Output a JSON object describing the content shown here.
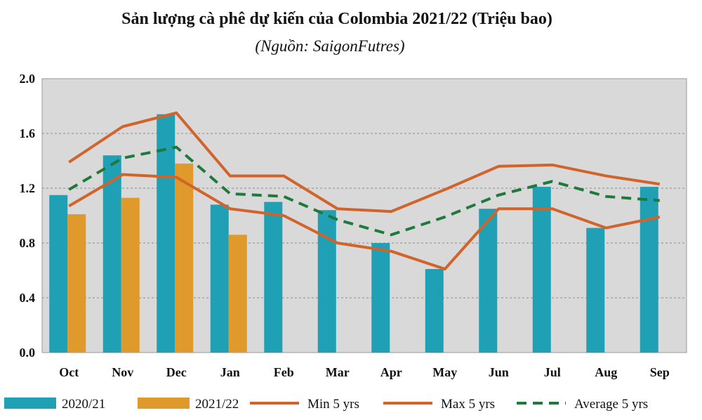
{
  "chart_data": {
    "type": "bar",
    "title": "Sản lượng cà phê dự kiến của Colombia 2021/22 (Triệu bao)",
    "subtitle": "(Nguồn: SaigonFutres)",
    "categories": [
      "Oct",
      "Nov",
      "Dec",
      "Jan",
      "Feb",
      "Mar",
      "Apr",
      "May",
      "Jun",
      "Jul",
      "Aug",
      "Sep"
    ],
    "ylim": [
      0,
      2.0
    ],
    "yticks": [
      "0.0",
      "0.4",
      "0.8",
      "1.2",
      "1.6",
      "2.0"
    ],
    "grid": true,
    "legend_position": "bottom",
    "series": [
      {
        "name": "2020/21",
        "kind": "bar",
        "color": "#1FA0B4",
        "values": [
          1.15,
          1.44,
          1.74,
          1.08,
          1.1,
          1.04,
          0.8,
          0.61,
          1.05,
          1.21,
          0.91,
          1.21
        ]
      },
      {
        "name": "2021/22",
        "kind": "bar",
        "color": "#E09A2C",
        "values": [
          1.01,
          1.13,
          1.38,
          0.86,
          null,
          null,
          null,
          null,
          null,
          null,
          null,
          null
        ]
      },
      {
        "name": "Min 5 yrs",
        "kind": "line",
        "color": "#D1642A",
        "values": [
          1.07,
          1.3,
          1.28,
          1.05,
          1.0,
          0.8,
          0.74,
          0.61,
          1.05,
          1.05,
          0.91,
          0.99
        ]
      },
      {
        "name": "Max 5 yrs",
        "kind": "line",
        "color": "#D1642A",
        "values": [
          1.39,
          1.65,
          1.75,
          1.29,
          1.29,
          1.05,
          1.03,
          1.19,
          1.36,
          1.37,
          1.29,
          1.23
        ]
      },
      {
        "name": "Average 5 yrs",
        "kind": "dashed-line",
        "color": "#1E7A3C",
        "values": [
          1.19,
          1.42,
          1.5,
          1.16,
          1.14,
          0.97,
          0.86,
          0.99,
          1.15,
          1.25,
          1.14,
          1.11
        ]
      }
    ]
  }
}
